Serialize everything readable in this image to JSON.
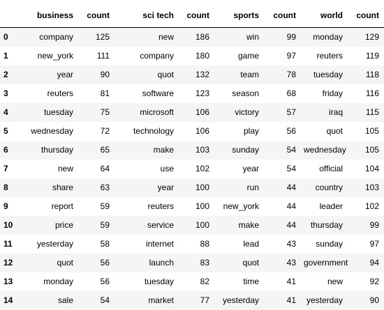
{
  "table": {
    "index_header": "",
    "columns": [
      "business",
      "count",
      "sci tech",
      "count",
      "sports",
      "count",
      "world",
      "count"
    ],
    "rows": [
      {
        "index": "0",
        "cells": [
          "company",
          "125",
          "new",
          "186",
          "win",
          "99",
          "monday",
          "129"
        ]
      },
      {
        "index": "1",
        "cells": [
          "new_york",
          "111",
          "company",
          "180",
          "game",
          "97",
          "reuters",
          "119"
        ]
      },
      {
        "index": "2",
        "cells": [
          "year",
          "90",
          "quot",
          "132",
          "team",
          "78",
          "tuesday",
          "118"
        ]
      },
      {
        "index": "3",
        "cells": [
          "reuters",
          "81",
          "software",
          "123",
          "season",
          "68",
          "friday",
          "116"
        ]
      },
      {
        "index": "4",
        "cells": [
          "tuesday",
          "75",
          "microsoft",
          "106",
          "victory",
          "57",
          "iraq",
          "115"
        ]
      },
      {
        "index": "5",
        "cells": [
          "wednesday",
          "72",
          "technology",
          "106",
          "play",
          "56",
          "quot",
          "105"
        ]
      },
      {
        "index": "6",
        "cells": [
          "thursday",
          "65",
          "make",
          "103",
          "sunday",
          "54",
          "wednesday",
          "105"
        ]
      },
      {
        "index": "7",
        "cells": [
          "new",
          "64",
          "use",
          "102",
          "year",
          "54",
          "official",
          "104"
        ]
      },
      {
        "index": "8",
        "cells": [
          "share",
          "63",
          "year",
          "100",
          "run",
          "44",
          "country",
          "103"
        ]
      },
      {
        "index": "9",
        "cells": [
          "report",
          "59",
          "reuters",
          "100",
          "new_york",
          "44",
          "leader",
          "102"
        ]
      },
      {
        "index": "10",
        "cells": [
          "price",
          "59",
          "service",
          "100",
          "make",
          "44",
          "thursday",
          "99"
        ]
      },
      {
        "index": "11",
        "cells": [
          "yesterday",
          "58",
          "internet",
          "88",
          "lead",
          "43",
          "sunday",
          "97"
        ]
      },
      {
        "index": "12",
        "cells": [
          "quot",
          "56",
          "launch",
          "83",
          "quot",
          "43",
          "government",
          "94"
        ]
      },
      {
        "index": "13",
        "cells": [
          "monday",
          "56",
          "tuesday",
          "82",
          "time",
          "41",
          "new",
          "92"
        ]
      },
      {
        "index": "14",
        "cells": [
          "sale",
          "54",
          "market",
          "77",
          "yesterday",
          "41",
          "yesterday",
          "90"
        ]
      }
    ]
  }
}
